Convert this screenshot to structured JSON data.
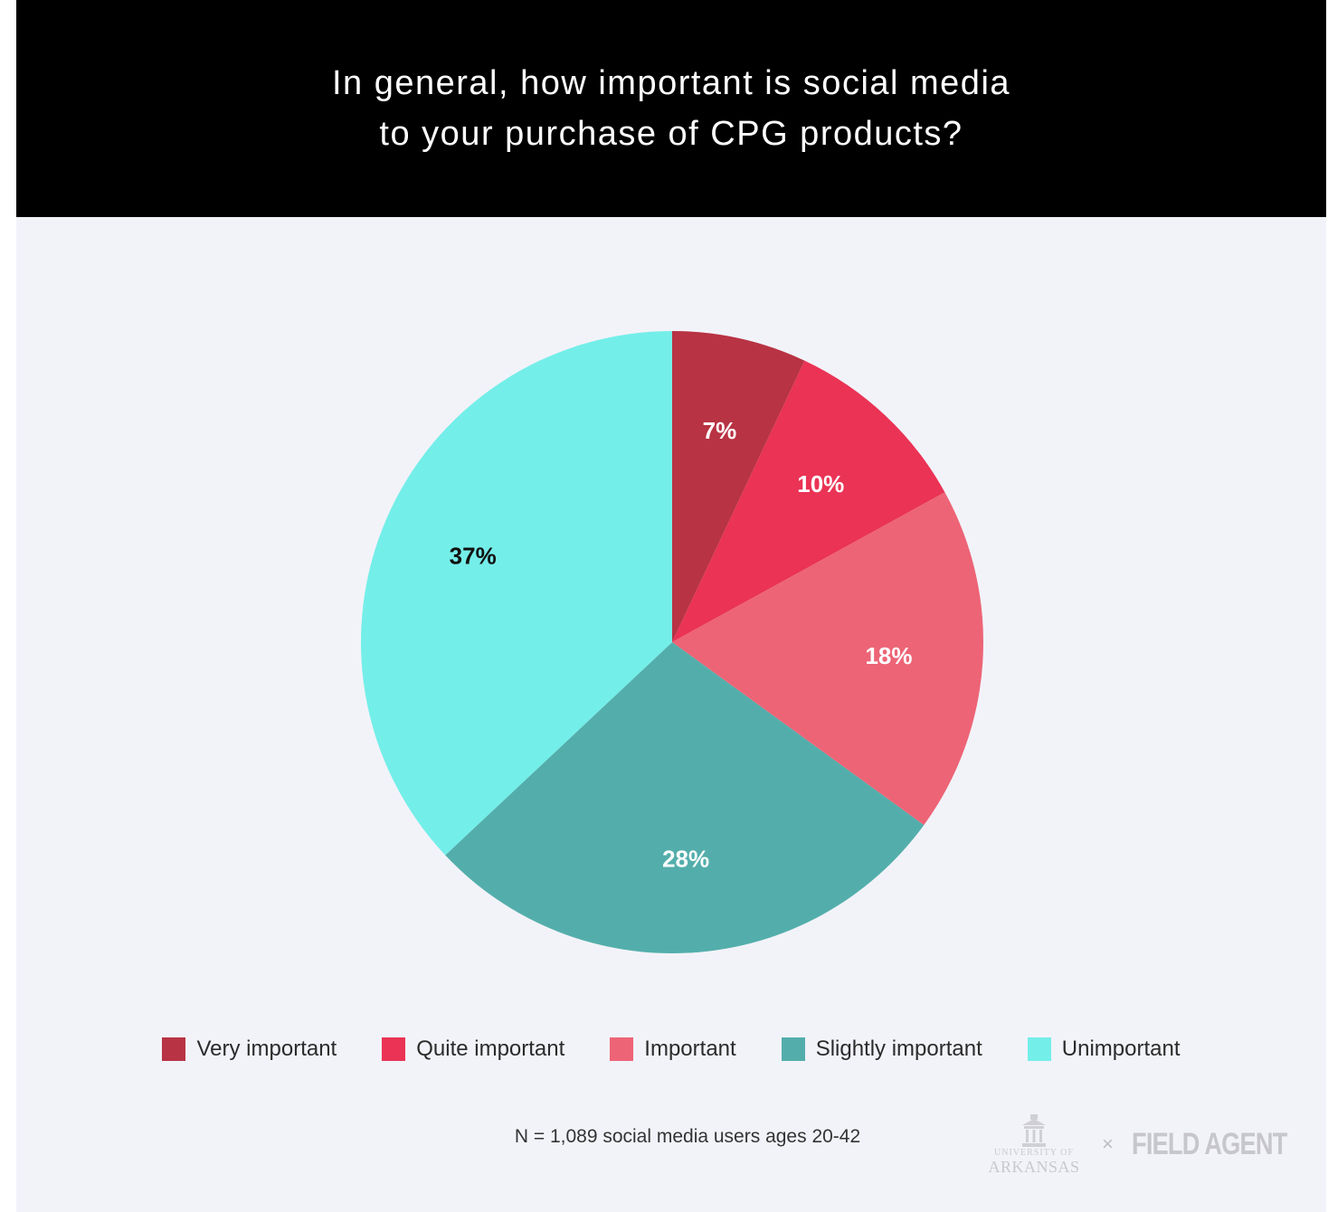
{
  "header": {
    "title_line1": "In general, how important is social media",
    "title_line2": "to your purchase of CPG products?"
  },
  "chart_data": {
    "type": "pie",
    "title": "In general, how important is social media to your purchase of CPG products?",
    "start_angle_deg": 0,
    "direction": "clockwise",
    "legend_position": "bottom",
    "slices": [
      {
        "name": "Very important",
        "value": 7,
        "label": "7%",
        "color": "#b83344"
      },
      {
        "name": "Quite important",
        "value": 10,
        "label": "10%",
        "color": "#ea3355"
      },
      {
        "name": "Important",
        "value": 18,
        "label": "18%",
        "color": "#ed6476"
      },
      {
        "name": "Slightly important",
        "value": 28,
        "label": "28%",
        "color": "#53aeab"
      },
      {
        "name": "Unimportant",
        "value": 37,
        "label": "37%",
        "color": "#74eee9"
      }
    ]
  },
  "footnote": "N = 1,089 social media users ages 20-42",
  "logos": {
    "university_sub": "UNIVERSITY OF",
    "university_main": "ARKANSAS",
    "separator": "×",
    "field_agent": "FIELD AGENT"
  }
}
